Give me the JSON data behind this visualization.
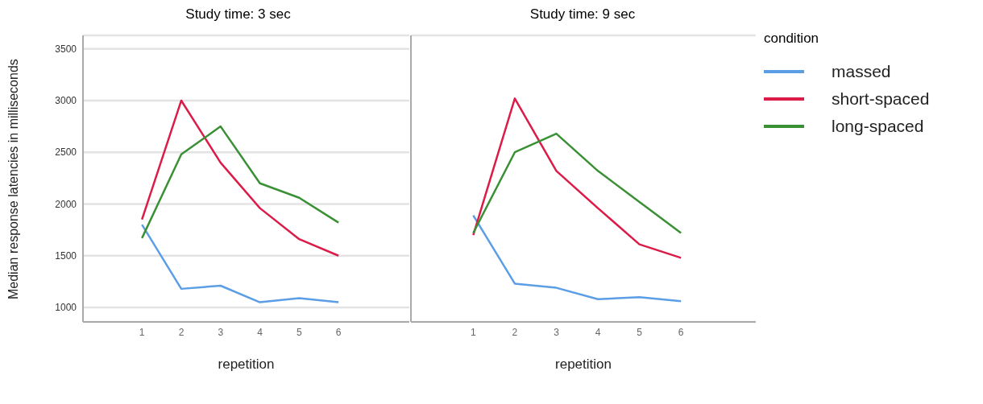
{
  "chart_data": [
    {
      "type": "line",
      "title": "Study time: 3 sec",
      "xlabel": "repetition",
      "ylabel": "Median response latencies in milliseconds",
      "categories": [
        "1",
        "2",
        "3",
        "4",
        "5",
        "6"
      ],
      "series": [
        {
          "color": "#5b9ee6",
          "values": [
            1800,
            1180,
            1210,
            1050,
            1090,
            1050
          ]
        },
        {
          "color": "#dc1c48",
          "values": [
            1850,
            3000,
            2400,
            1960,
            1660,
            1500
          ]
        },
        {
          "color": "#3a9035",
          "values": [
            1670,
            2480,
            2750,
            2200,
            2060,
            1820
          ]
        }
      ],
      "ylim": [
        860,
        3630
      ],
      "yticks": [
        1000,
        1500,
        2000,
        2500,
        3000,
        3500
      ],
      "grid": "y"
    },
    {
      "type": "line",
      "title": "Study time: 9 sec",
      "xlabel": "repetition",
      "legend_title": "condition",
      "categories": [
        "1",
        "2",
        "3",
        "4",
        "5",
        "6"
      ],
      "series": [
        {
          "name": "massed",
          "color": "#5b9ee6",
          "values": [
            1890,
            1230,
            1190,
            1080,
            1100,
            1060
          ]
        },
        {
          "name": "short-spaced",
          "color": "#dc1c48",
          "values": [
            1700,
            3020,
            2320,
            1960,
            1610,
            1480
          ]
        },
        {
          "name": "long-spaced",
          "color": "#3a9035",
          "values": [
            1720,
            2500,
            2680,
            2320,
            2020,
            1720
          ]
        }
      ],
      "ylim": [
        860,
        3630
      ],
      "yticks": [
        1000,
        1500,
        2000,
        2500,
        3000,
        3500
      ],
      "grid": "y",
      "legend": "right",
      "tick_labels": "x"
    }
  ]
}
